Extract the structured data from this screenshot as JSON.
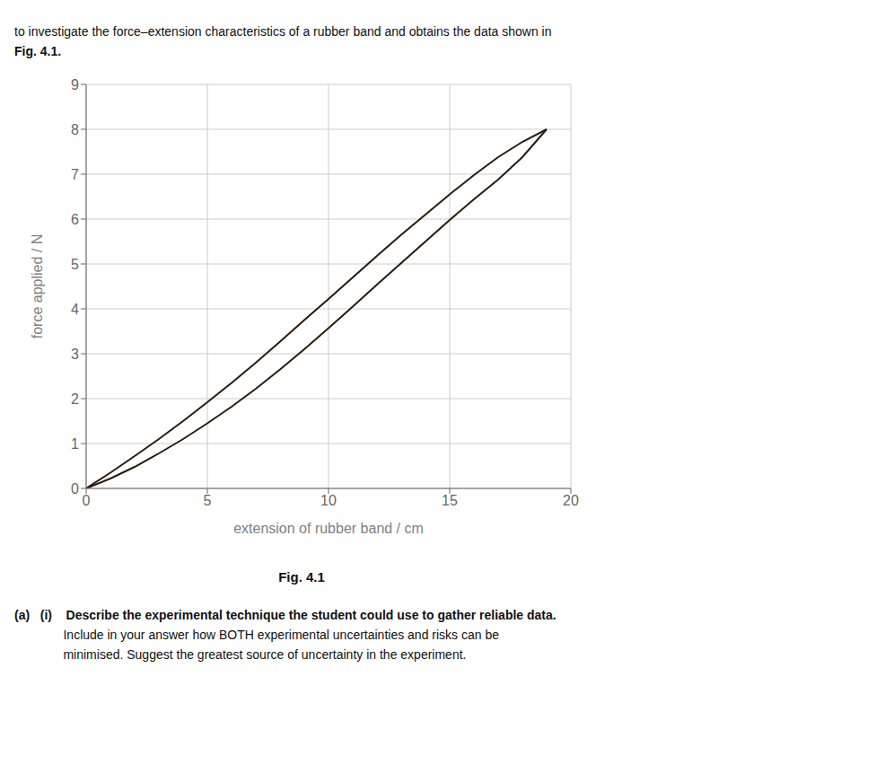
{
  "chart_data": {
    "type": "line",
    "xlabel": "extension of rubber band / cm",
    "ylabel": "force applied / N",
    "x": [
      0.0,
      1.0,
      2.0,
      3.0,
      4.0,
      5.0,
      6.0,
      7.0,
      8.0,
      9.0,
      10.0,
      11.0,
      12.0,
      13.0,
      14.0,
      15.0,
      16.0,
      17.0,
      18.0,
      19.0
    ],
    "series": [
      {
        "color": "#2a1a0a",
        "values": [
          0.0,
          0.35,
          0.72,
          1.1,
          1.5,
          1.92,
          2.35,
          2.8,
          3.27,
          3.75,
          4.22,
          4.7,
          5.18,
          5.65,
          6.1,
          6.55,
          6.98,
          7.38,
          7.72,
          8.0
        ]
      },
      {
        "color": "#2a1a0a",
        "values": [
          0.0,
          0.22,
          0.48,
          0.78,
          1.1,
          1.45,
          1.82,
          2.22,
          2.65,
          3.1,
          3.57,
          4.05,
          4.54,
          5.02,
          5.5,
          5.98,
          6.44,
          6.88,
          7.38,
          8.0
        ]
      }
    ],
    "xlim": [
      0,
      20
    ],
    "ylim": [
      0,
      9
    ],
    "xticks": [
      0,
      5,
      10,
      15,
      20
    ],
    "yticks": [
      0,
      1,
      2,
      3,
      4,
      5,
      6,
      7,
      8,
      9
    ],
    "grid": true,
    "annotations": {
      "above": [
        "to investigate the force–extension characteristics of a rubber band and obtains the data shown in",
        "Fig. 4.1."
      ],
      "caption": "Fig. 4.1",
      "below": [
        "(a)   (i)    Describe the experimental technique the student could use to gather reliable data.",
        "              Include in your answer how BOTH experimental uncertainties and risks can be",
        "              minimised. Suggest the greatest source of uncertainty in the experiment."
      ]
    }
  }
}
